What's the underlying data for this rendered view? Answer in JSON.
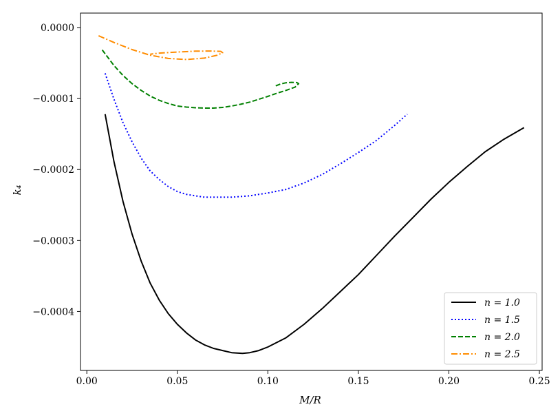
{
  "chart_data": {
    "type": "line",
    "xlabel": "M/R",
    "ylabel": "k₄",
    "xlim": [
      -0.0035,
      0.2515
    ],
    "ylim": [
      -0.000483,
      2.04e-05
    ],
    "xticks": [
      0.0,
      0.05,
      0.1,
      0.15,
      0.2,
      0.25
    ],
    "xtick_labels": [
      "0.00",
      "0.05",
      "0.10",
      "0.15",
      "0.20",
      "0.25"
    ],
    "yticks": [
      0.0,
      -0.0001,
      -0.0002,
      -0.0003,
      -0.0004
    ],
    "ytick_labels": [
      "0.0000",
      "−0.0001",
      "−0.0002",
      "−0.0003",
      "−0.0004"
    ],
    "grid": false,
    "legend_position": "bottom-right",
    "series": [
      {
        "name": "n = 1.0",
        "color": "#000000",
        "dash": "solid",
        "x": [
          0.0101,
          0.015,
          0.02,
          0.025,
          0.03,
          0.035,
          0.04,
          0.045,
          0.05,
          0.055,
          0.06,
          0.065,
          0.07,
          0.075,
          0.08,
          0.086,
          0.09,
          0.095,
          0.1,
          0.11,
          0.12,
          0.13,
          0.14,
          0.15,
          0.16,
          0.17,
          0.18,
          0.19,
          0.2,
          0.21,
          0.22,
          0.23,
          0.2415
        ],
        "y": [
          -0.000122,
          -0.000189,
          -0.000245,
          -0.000291,
          -0.000329,
          -0.00036,
          -0.000384,
          -0.000403,
          -0.000418,
          -0.00043,
          -0.00044,
          -0.000447,
          -0.000452,
          -0.000455,
          -0.000458,
          -0.000459,
          -0.000458,
          -0.000455,
          -0.00045,
          -0.000437,
          -0.000418,
          -0.000396,
          -0.000372,
          -0.000348,
          -0.000321,
          -0.000294,
          -0.000268,
          -0.000242,
          -0.000218,
          -0.000196,
          -0.000175,
          -0.000158,
          -0.000141
        ]
      },
      {
        "name": "n = 1.5",
        "color": "#0000ff",
        "dash": "dotted",
        "x": [
          0.0101,
          0.015,
          0.02,
          0.025,
          0.03,
          0.035,
          0.04,
          0.045,
          0.05,
          0.055,
          0.06,
          0.065,
          0.07,
          0.075,
          0.08,
          0.085,
          0.09,
          0.095,
          0.1,
          0.11,
          0.12,
          0.13,
          0.14,
          0.15,
          0.16,
          0.17,
          0.177
        ],
        "y": [
          -6.45e-05,
          -0.000101,
          -0.000134,
          -0.000161,
          -0.000184,
          -0.000202,
          -0.000214,
          -0.000224,
          -0.000231,
          -0.000235,
          -0.000237,
          -0.000239,
          -0.000239,
          -0.000239,
          -0.000239,
          -0.000238,
          -0.000237,
          -0.000235,
          -0.000233,
          -0.000228,
          -0.000219,
          -0.000207,
          -0.000192,
          -0.000176,
          -0.000159,
          -0.000138,
          -0.000122
        ]
      },
      {
        "name": "n = 2.0",
        "color": "#008000",
        "dash": "dashed",
        "x": [
          0.0085,
          0.015,
          0.02,
          0.025,
          0.03,
          0.035,
          0.04,
          0.045,
          0.05,
          0.055,
          0.06,
          0.065,
          0.07,
          0.075,
          0.08,
          0.085,
          0.09,
          0.095,
          0.1,
          0.105,
          0.11,
          0.115,
          0.117,
          0.116,
          0.113,
          0.11,
          0.107,
          0.104
        ],
        "y": [
          -3.15e-05,
          -5.35e-05,
          -6.75e-05,
          -7.9e-05,
          -8.85e-05,
          -9.65e-05,
          -0.0001025,
          -0.000107,
          -0.0001105,
          -0.000112,
          -0.000113,
          -0.0001135,
          -0.0001135,
          -0.0001125,
          -0.0001105,
          -0.000108,
          -0.000105,
          -0.000101,
          -9.7e-05,
          -9.25e-05,
          -8.85e-05,
          -8.4e-05,
          -7.9e-05,
          -7.75e-05,
          -7.72e-05,
          -7.78e-05,
          -7.95e-05,
          -8.25e-05
        ]
      },
      {
        "name": "n = 2.5",
        "color": "#ff8c00",
        "dash": "dashdot",
        "x": [
          0.0065,
          0.015,
          0.025,
          0.035,
          0.045,
          0.055,
          0.065,
          0.072,
          0.075,
          0.074,
          0.068,
          0.06,
          0.05,
          0.04,
          0.035
        ],
        "y": [
          -1.15e-05,
          -2.1e-05,
          -3.1e-05,
          -3.9e-05,
          -4.35e-05,
          -4.5e-05,
          -4.3e-05,
          -3.9e-05,
          -3.55e-05,
          -3.35e-05,
          -3.3e-05,
          -3.32e-05,
          -3.45e-05,
          -3.6e-05,
          -3.75e-05
        ]
      }
    ]
  }
}
